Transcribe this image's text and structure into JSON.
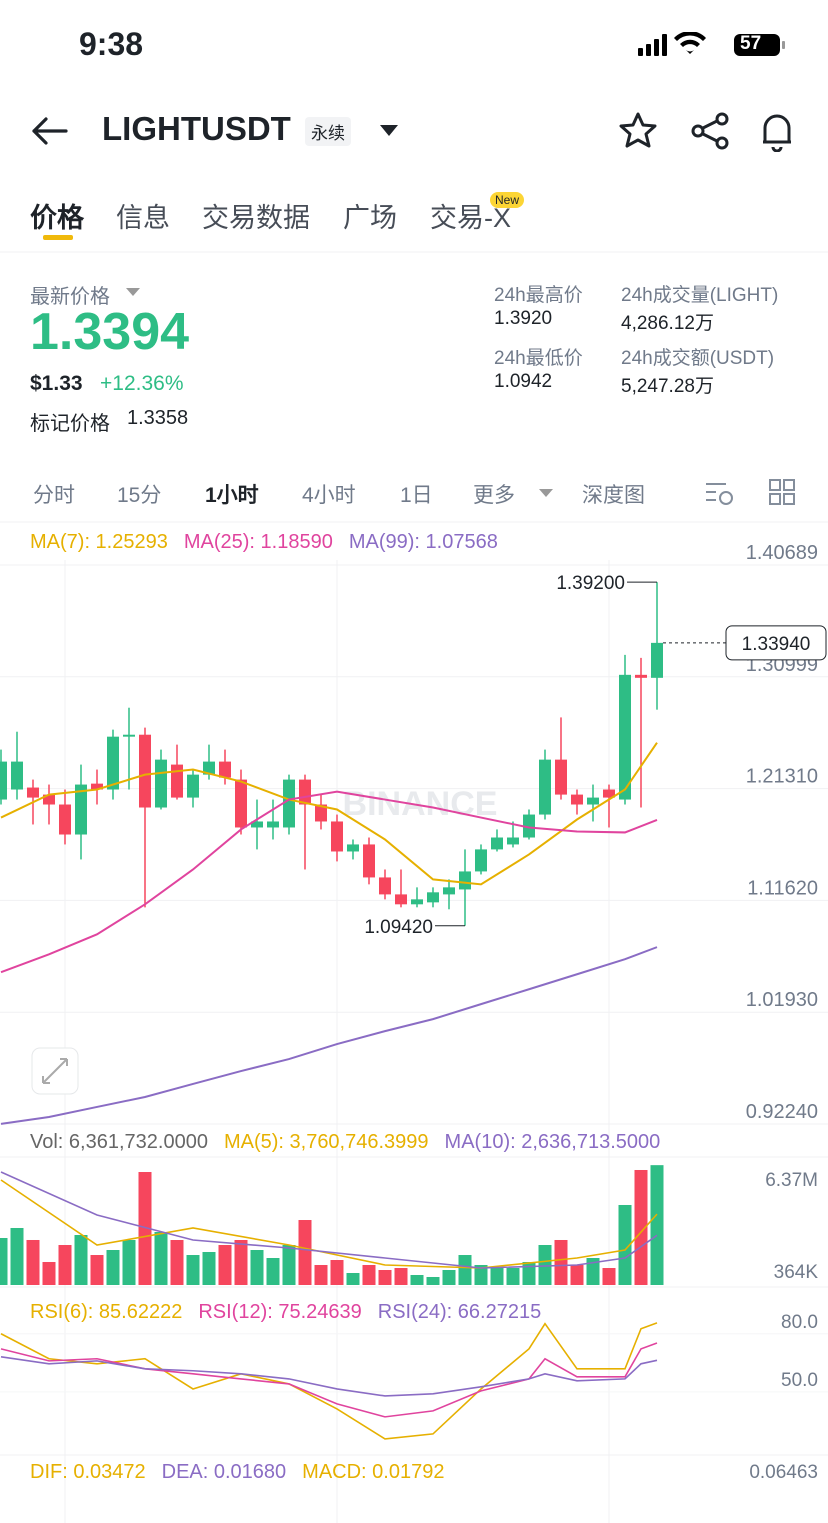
{
  "status": {
    "time": "9:38",
    "battery": "57"
  },
  "header": {
    "symbol": "LIGHTUSDT",
    "contract": "永续"
  },
  "tabs": [
    "价格",
    "信息",
    "交易数据",
    "广场",
    "交易-X"
  ],
  "tab_badge": "New",
  "ticker": {
    "label": "最新价格",
    "price": "1.3394",
    "usd": "$1.33",
    "change": "+12.36%",
    "mark_label": "标记价格",
    "mark_price": "1.3358"
  },
  "stats": [
    {
      "label": "24h最高价",
      "value": "1.3920"
    },
    {
      "label": "24h成交量(LIGHT)",
      "value": "4,286.12万"
    },
    {
      "label": "24h最低价",
      "value": "1.0942"
    },
    {
      "label": "24h成交额(USDT)",
      "value": "5,247.28万"
    }
  ],
  "intervals": [
    "分时",
    "15分",
    "1小时",
    "4小时",
    "1日",
    "更多",
    "深度图"
  ],
  "chart_data": {
    "type": "candlestick",
    "up_color": "#2ebd85",
    "down_color": "#f6465d",
    "watermark": "BINANCE",
    "legend": [
      {
        "text": "MA(7): 1.25293",
        "color": "#e6b000"
      },
      {
        "text": "MA(25): 1.18590",
        "color": "#e0449e"
      },
      {
        "text": "MA(99): 1.07568",
        "color": "#8a6cc4"
      }
    ],
    "open": [
      1.2036,
      1.2123,
      1.214,
      1.2079,
      1.1993,
      1.1733,
      1.2174,
      1.2123,
      1.2581,
      1.2598,
      1.1967,
      1.2339,
      1.2053,
      1.2252,
      1.2365,
      1.2209,
      1.1794,
      1.1794,
      1.1794,
      1.2209,
      1.1993,
      1.1846,
      1.1586,
      1.1647,
      1.1361,
      1.1214,
      1.1128,
      1.1145,
      1.1214,
      1.1257,
      1.1413,
      1.1604,
      1.1647,
      1.1707,
      1.1906,
      1.2382,
      1.2079,
      1.1993,
      1.2123,
      1.2036,
      1.3117,
      1.3091
    ],
    "high": [
      1.2469,
      1.2624,
      1.2209,
      1.2166,
      1.2123,
      1.2339,
      1.2296,
      1.2642,
      1.2832,
      1.2659,
      1.2469,
      1.2512,
      1.2296,
      1.2512,
      1.2469,
      1.2296,
      1.2036,
      1.2036,
      1.2252,
      1.2252,
      1.2079,
      1.1906,
      1.169,
      1.1707,
      1.143,
      1.143,
      1.1275,
      1.1275,
      1.1344,
      1.1604,
      1.1647,
      1.1777,
      1.1846,
      1.195,
      1.2469,
      1.2748,
      1.2123,
      1.2166,
      1.2166,
      1.329,
      1.3264,
      1.392
    ],
    "low": [
      1.1993,
      1.2036,
      1.182,
      1.182,
      1.1647,
      1.1517,
      1.1993,
      1.2036,
      1.2123,
      1.1102,
      1.195,
      1.2036,
      1.1967,
      1.2209,
      1.2166,
      1.1733,
      1.1604,
      1.169,
      1.1733,
      1.143,
      1.1777,
      1.15,
      1.1517,
      1.1301,
      1.1171,
      1.1102,
      1.1102,
      1.1102,
      1.1085,
      1.0942,
      1.1387,
      1.1586,
      1.1621,
      1.169,
      1.1863,
      1.2036,
      1.1906,
      1.1846,
      1.1794,
      1.1993,
      1.1967,
      1.2815
    ],
    "close": [
      1.2365,
      1.2365,
      1.2053,
      1.1993,
      1.1733,
      1.2166,
      1.2123,
      1.2581,
      1.2598,
      1.1967,
      1.2382,
      1.2053,
      1.2252,
      1.2365,
      1.2226,
      1.1794,
      1.1846,
      1.1846,
      1.2209,
      1.1993,
      1.1846,
      1.1586,
      1.1647,
      1.1361,
      1.1214,
      1.1128,
      1.1171,
      1.1232,
      1.1275,
      1.1413,
      1.1604,
      1.1707,
      1.1707,
      1.1906,
      1.2382,
      1.2079,
      1.1993,
      1.2053,
      1.2053,
      1.3117,
      1.3091,
      1.3394
    ],
    "ylim": [
      0.9224,
      1.40689
    ],
    "yticks": [
      1.40689,
      1.30999,
      {
        "value": 1.2131,
        "label": "1.21310"
      },
      {
        "value": 1.1162,
        "label": "1.11620"
      },
      {
        "value": 1.0193,
        "label": "1.01930"
      },
      {
        "value": 0.9224,
        "label": "0.92240"
      }
    ],
    "high_label": "1.39200",
    "low_label": "1.09420",
    "last_label": "1.33940",
    "ma": [
      {
        "name": "MA(7)",
        "color": "#e6b000",
        "x": [
          0,
          3,
          6,
          9,
          12,
          15,
          18,
          21,
          24,
          27,
          30,
          33,
          36,
          39,
          41
        ],
        "values": [
          1.188,
          1.2079,
          1.2123,
          1.2252,
          1.2296,
          1.2192,
          1.2036,
          1.195,
          1.169,
          1.1344,
          1.1301,
          1.156,
          1.1863,
          1.2123,
          1.2529
        ]
      },
      {
        "name": "MA(25)",
        "color": "#e0449e",
        "x": [
          0,
          3,
          6,
          9,
          12,
          15,
          18,
          21,
          24,
          27,
          30,
          33,
          36,
          39,
          41
        ],
        "values": [
          1.054,
          1.0695,
          1.0868,
          1.1128,
          1.143,
          1.1777,
          1.2036,
          1.2105,
          1.2036,
          1.1967,
          1.188,
          1.1794,
          1.1759,
          1.1751,
          1.1859
        ]
      },
      {
        "name": "MA(99)",
        "color": "#8a6cc4",
        "x": [
          0,
          3,
          6,
          9,
          12,
          15,
          18,
          21,
          24,
          27,
          30,
          33,
          36,
          39,
          41
        ],
        "values": [
          0.9225,
          0.9285,
          0.9372,
          0.9458,
          0.9571,
          0.9683,
          0.9787,
          0.9917,
          1.0029,
          1.0133,
          1.0263,
          1.0392,
          1.0522,
          1.0652,
          1.0757
        ]
      }
    ],
    "volume": {
      "legend": [
        {
          "text": "Vol: 6,361,732.0000",
          "color": "#666"
        },
        {
          "text": "MA(5): 3,760,746.3999",
          "color": "#e6b000"
        },
        {
          "text": "MA(10): 2,636,713.5000",
          "color": "#8a6cc4"
        }
      ],
      "values": [
        2495000,
        3026000,
        2389000,
        1221000,
        2123000,
        2654000,
        1592000,
        1858000,
        2389000,
        5998000,
        2813000,
        2389000,
        1592000,
        1752000,
        2123000,
        2389000,
        1858000,
        1433000,
        2123000,
        3450000,
        1062000,
        1327000,
        637000,
        1062000,
        796000,
        902000,
        531000,
        425000,
        796000,
        1592000,
        1062000,
        902000,
        902000,
        1221000,
        2123000,
        2389000,
        1062000,
        1433000,
        902000,
        4247000,
        6105000,
        6361732
      ],
      "ylim": [
        0,
        6370000
      ],
      "yticks": [
        {
          "value": 6370000,
          "label": "6.37M"
        },
        {
          "value": 364000,
          "label": "364K"
        }
      ],
      "ma": [
        {
          "name": "MA(5)",
          "color": "#e6b000",
          "x": [
            0,
            6,
            12,
            18,
            24,
            30,
            36,
            39,
            41
          ],
          "values": [
            5574000,
            2123000,
            3026000,
            2123000,
            1062000,
            902000,
            1433000,
            1858000,
            3760746
          ]
        },
        {
          "name": "MA(10)",
          "color": "#8a6cc4",
          "x": [
            0,
            6,
            12,
            18,
            24,
            30,
            36,
            39,
            41
          ],
          "values": [
            5998000,
            3716000,
            2389000,
            1964000,
            1433000,
            902000,
            1062000,
            1433000,
            2636713.5
          ]
        }
      ]
    },
    "rsi": {
      "legend": [
        {
          "text": "RSI(6): 85.62222",
          "color": "#e6b000"
        },
        {
          "text": "RSI(12): 75.24639",
          "color": "#e0449e"
        },
        {
          "text": "RSI(24): 66.27215",
          "color": "#8a6cc4"
        }
      ],
      "ylim": [
        20,
        100
      ],
      "yticks": [
        {
          "value": 80,
          "label": "80.0"
        },
        {
          "value": 50,
          "label": "50.0"
        }
      ],
      "series": [
        {
          "name": "RSI(6)",
          "color": "#e6b000",
          "x": [
            0,
            3,
            6,
            9,
            12,
            15,
            18,
            21,
            24,
            27,
            30,
            33,
            34,
            36,
            39,
            40,
            41
          ],
          "values": [
            80.0,
            67.1,
            64.5,
            67.1,
            51.5,
            59.3,
            54.1,
            41.2,
            25.7,
            28.3,
            51.5,
            72.2,
            85.2,
            61.9,
            61.9,
            82.6,
            85.6
          ]
        },
        {
          "name": "RSI(12)",
          "color": "#e0449e",
          "x": [
            0,
            3,
            6,
            9,
            12,
            15,
            18,
            21,
            24,
            27,
            30,
            33,
            34,
            36,
            39,
            40,
            41
          ],
          "values": [
            72.2,
            66.0,
            67.1,
            61.9,
            59.3,
            56.7,
            54.1,
            43.8,
            37.1,
            40.2,
            50.5,
            56.7,
            67.1,
            57.8,
            57.8,
            72.2,
            75.2
          ]
        },
        {
          "name": "RSI(24)",
          "color": "#8a6cc4",
          "x": [
            0,
            3,
            6,
            9,
            12,
            15,
            18,
            21,
            24,
            27,
            30,
            33,
            34,
            36,
            39,
            40,
            41
          ],
          "values": [
            68.1,
            64.5,
            66.0,
            61.9,
            60.9,
            59.3,
            56.7,
            51.5,
            47.9,
            49.0,
            52.6,
            56.7,
            59.3,
            55.7,
            56.7,
            64.5,
            66.3
          ]
        }
      ]
    },
    "macd": {
      "legend": [
        {
          "text": "DIF: 0.03472",
          "color": "#e6b000"
        },
        {
          "text": "DEA: 0.01680",
          "color": "#8a6cc4"
        },
        {
          "text": "MACD: 0.01792",
          "color": "#e6b000"
        }
      ],
      "yticks": [
        0.06463
      ]
    }
  }
}
